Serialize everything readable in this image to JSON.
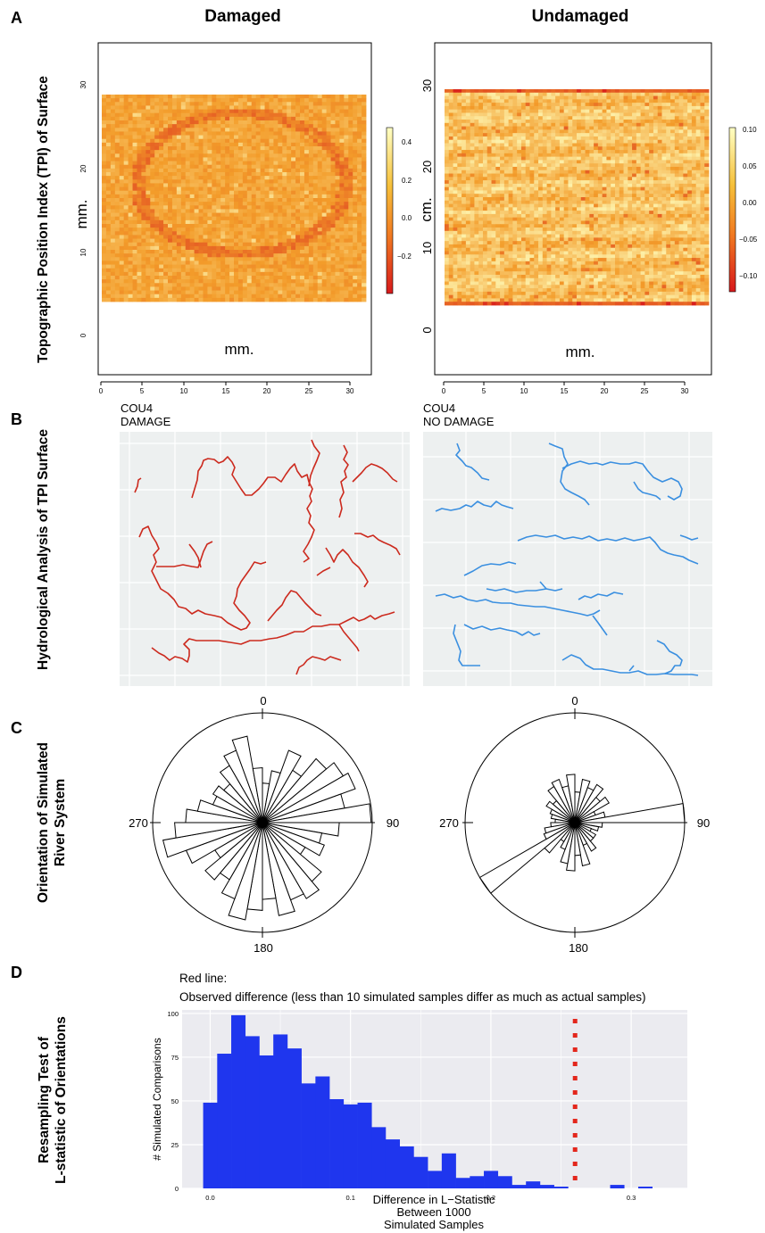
{
  "panels": {
    "A": {
      "letter": "A",
      "row_label": "Topographic Position Index (TPI) of Surface"
    },
    "B": {
      "letter": "B",
      "row_label": "Hydrological Analysis of TPI Surface"
    },
    "C": {
      "letter": "C",
      "row_label_1": "Orientation of Simulated",
      "row_label_2": "River System"
    },
    "D": {
      "letter": "D",
      "row_label_1": "Resampling Test of",
      "row_label_2": "L-statistic of Orientations"
    }
  },
  "columns": {
    "left_title": "Damaged",
    "right_title": "Undamaged"
  },
  "heatmaps": {
    "left": {
      "ylabel": "mm.",
      "xlabel": "mm.",
      "x_ticks": [
        "0",
        "5",
        "10",
        "15",
        "20",
        "25",
        "30"
      ],
      "y_ticks": [
        "0",
        "10",
        "20",
        "30"
      ],
      "colorbar_ticks": [
        "0.4",
        "0.2",
        "0.0",
        "−0.2"
      ]
    },
    "right": {
      "ylabel": "cm.",
      "xlabel": "mm.",
      "x_ticks": [
        "0",
        "5",
        "10",
        "15",
        "20",
        "25",
        "30"
      ],
      "y_ticks": [
        "0",
        "10",
        "20",
        "30"
      ],
      "colorbar_ticks": [
        "0.10",
        "0.05",
        "0.00",
        "−0.05",
        "−0.10"
      ]
    },
    "colors": {
      "low": "#d7191c",
      "mid": "#f39c2a",
      "high": "#ffffbf"
    }
  },
  "networks": {
    "left": {
      "line1": "COU4",
      "line2": "DAMAGE",
      "color": "#cc2a1e"
    },
    "right": {
      "line1": "COU4",
      "line2": "NO DAMAGE",
      "color": "#3a8fe0"
    },
    "background": "#edf0f0"
  },
  "roses": {
    "labels": {
      "top": "0",
      "right": "90",
      "bottom": "180",
      "left": "270"
    },
    "left_lengths": [
      0.36,
      0.48,
      0.7,
      0.55,
      0.76,
      0.85,
      0.9,
      0.76,
      0.99,
      0.7,
      0.55,
      0.6,
      0.45,
      0.7,
      0.8,
      0.75,
      0.86,
      0.7,
      0.8,
      0.9,
      0.74,
      0.6,
      0.68,
      0.5,
      0.74,
      0.92,
      0.8,
      0.7,
      0.6,
      0.48,
      0.52,
      0.46,
      0.6,
      0.7,
      0.8,
      0.5
    ],
    "right_lengths": [
      0.28,
      0.4,
      0.34,
      0.4,
      0.3,
      0.36,
      0.2,
      0.28,
      1.0,
      0.25,
      0.22,
      0.16,
      0.22,
      0.22,
      0.3,
      0.22,
      0.4,
      0.3,
      0.44,
      0.38,
      0.26,
      0.2,
      0.36,
      1.0,
      0.3,
      0.28,
      0.22,
      0.18,
      0.22,
      0.24,
      0.3,
      0.26,
      0.38,
      0.42,
      0.34,
      0.44
    ]
  },
  "chart_data": {
    "type": "bar",
    "title": "Red line:",
    "subtitle": "Observed difference (less than 10 simulated samples differ as much as actual samples)",
    "xlabel": "Difference in L−Statistic",
    "xlabel2": "Between 1000",
    "xlabel3": "Simulated Samples",
    "ylabel": "# Simulated Comparisons",
    "bin_width": 0.01,
    "bin_starts": [
      -0.005,
      0.005,
      0.015,
      0.025,
      0.035,
      0.045,
      0.055,
      0.065,
      0.075,
      0.085,
      0.095,
      0.105,
      0.115,
      0.125,
      0.135,
      0.145,
      0.155,
      0.165,
      0.175,
      0.185,
      0.195,
      0.205,
      0.215,
      0.225,
      0.235,
      0.245,
      0.255,
      0.265,
      0.275,
      0.285,
      0.295,
      0.305,
      0.315
    ],
    "values": [
      49,
      77,
      99,
      87,
      76,
      88,
      80,
      60,
      64,
      51,
      48,
      49,
      35,
      28,
      24,
      18,
      10,
      20,
      6,
      7,
      10,
      7,
      2,
      4,
      2,
      1,
      0,
      0,
      0,
      2,
      0,
      1,
      0
    ],
    "observed_line_x": 0.26,
    "xlim": [
      -0.02,
      0.34
    ],
    "ylim": [
      0,
      102
    ],
    "x_ticks": [
      "0.0",
      "0.1",
      "0.2",
      "0.3"
    ],
    "y_ticks": [
      "0",
      "25",
      "50",
      "75",
      "100"
    ],
    "bar_color": "#1f36ee",
    "line_color": "#e3261c",
    "panel_bg": "#ebebf0"
  }
}
